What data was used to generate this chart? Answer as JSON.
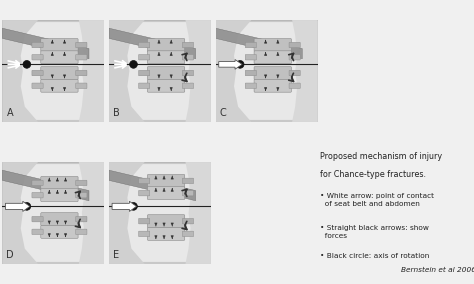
{
  "figsize": [
    4.74,
    2.84
  ],
  "dpi": 100,
  "fig_bg": "#f0f0f0",
  "panel_outer_bg": "#c8c8c8",
  "panel_inner_bg": "#e8e8e8",
  "torso_bg": "#d8d8d8",
  "torso_light": "#e4e4e4",
  "belt_color": "#888888",
  "spine_body_color": "#c8c8c8",
  "spine_process_color": "#b8b8b8",
  "line_color": "#222222",
  "arrow_color": "#333333",
  "dot_color": "#111111",
  "text_color": "#222222",
  "label_color": "#444444",
  "title_text": "Proposed mechanism of injury\nfor Chance-type fractures.",
  "bullet1": "• White arrow: point of contact\n  of seat belt and abdomen",
  "bullet2": "• Straight black arrows: show\n  forces",
  "bullet3": "• Black circle: axis of rotation",
  "citation": "Bernstein et al 2006"
}
